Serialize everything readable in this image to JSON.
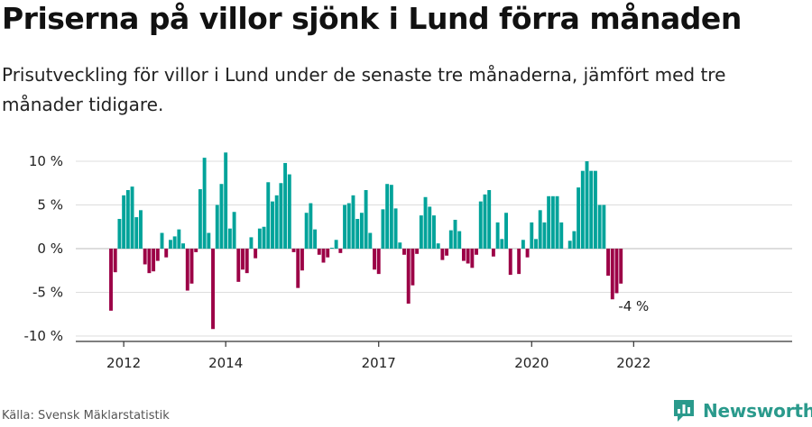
{
  "header": {
    "title": "Priserna på villor sjönk i Lund förra månaden",
    "subtitle": "Prisutveckling för villor i Lund under de senaste tre månaderna, jämfört med tre månader tidigare."
  },
  "footer": {
    "source": "Källa: Svensk Mäklarstatistik",
    "brand": "Newsworthy"
  },
  "colors": {
    "positive": "#00a39a",
    "negative": "#9c0046",
    "grid": "#dddddd",
    "axis": "#333333",
    "text": "#222222"
  },
  "icons": {
    "brand": "newsworthy-bar-chart-icon"
  },
  "chart_data": {
    "type": "bar",
    "ylabel": "",
    "xlabel": "",
    "ylim": [
      -10,
      10
    ],
    "grid": true,
    "y_ticks": [
      10,
      5,
      0,
      -5,
      -10
    ],
    "y_tick_labels": [
      "10 %",
      "5 %",
      "0 %",
      "-5 %",
      "-10 %"
    ],
    "x_tick_labels": [
      {
        "label": "2012",
        "x": "2012-01"
      },
      {
        "label": "2014",
        "x": "2014-01"
      },
      {
        "label": "2017",
        "x": "2017-01"
      },
      {
        "label": "2020",
        "x": "2020-01"
      },
      {
        "label": "2022",
        "x": "2022-01"
      }
    ],
    "annotation": {
      "label": "-4 %",
      "x": "2022-01",
      "value": -4
    },
    "x_start": "2011-10",
    "values": [
      -7.1,
      -2.7,
      3.4,
      6.1,
      6.7,
      7.1,
      3.6,
      4.4,
      -1.8,
      -2.8,
      -2.6,
      -1.4,
      1.8,
      -1.0,
      1.0,
      1.4,
      2.2,
      0.6,
      -4.8,
      -4.0,
      -0.4,
      6.8,
      10.4,
      1.8,
      -9.2,
      5.0,
      7.4,
      11.0,
      2.3,
      4.2,
      -3.8,
      -2.4,
      -2.8,
      1.3,
      -1.1,
      2.3,
      2.5,
      7.6,
      5.4,
      6.1,
      7.5,
      9.8,
      8.5,
      -0.4,
      -4.5,
      -2.5,
      4.1,
      5.2,
      2.2,
      -0.7,
      -1.6,
      -1.0,
      0.1,
      1.0,
      -0.5,
      5.0,
      5.2,
      6.1,
      3.4,
      4.1,
      6.7,
      1.8,
      -2.4,
      -2.9,
      4.5,
      7.4,
      7.3,
      4.6,
      0.7,
      -0.7,
      -6.3,
      -4.2,
      -0.6,
      3.8,
      5.9,
      4.8,
      3.8,
      0.6,
      -1.3,
      -0.8,
      2.1,
      3.3,
      2.0,
      -1.4,
      -1.7,
      -2.2,
      -0.7,
      5.4,
      6.2,
      6.7,
      -0.9,
      3.0,
      1.1,
      4.1,
      -3.0,
      0.0,
      -2.9,
      1.0,
      -1.0,
      3.0,
      1.1,
      4.4,
      3.0,
      6.0,
      6.0,
      6.0,
      3.0,
      0.0,
      0.9,
      2.0,
      7.0,
      8.9,
      10.0,
      8.9,
      8.9,
      5.0,
      5.0,
      -3.1,
      -5.8,
      -5.1,
      -4.0
    ]
  }
}
